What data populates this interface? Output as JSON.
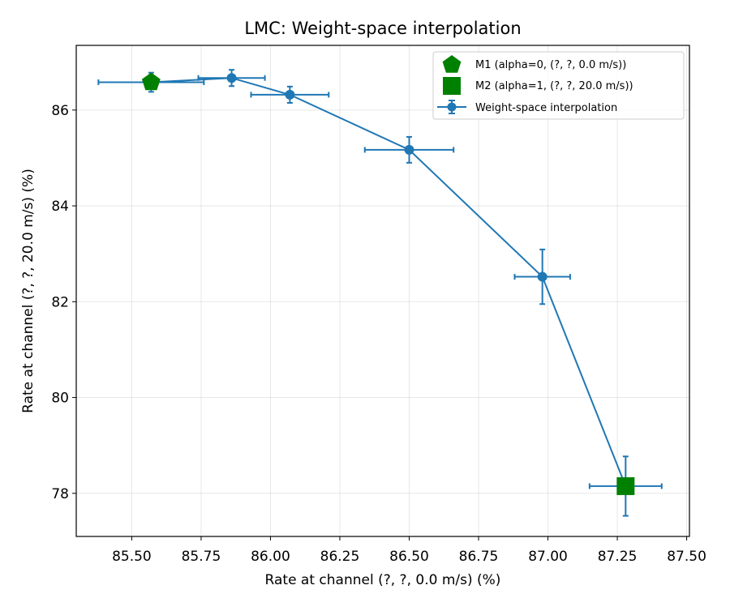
{
  "chart_data": {
    "type": "line",
    "title": "LMC: Weight-space interpolation",
    "xlabel": "Rate at channel (?, ?, 0.0 m/s) (%)",
    "ylabel": "Rate at channel (?, ?, 20.0 m/s) (%)",
    "xlim": [
      85.3,
      87.51
    ],
    "ylim": [
      77.1,
      87.35
    ],
    "x_ticks": [
      85.5,
      85.75,
      86.0,
      86.25,
      86.5,
      86.75,
      87.0,
      87.25,
      87.5
    ],
    "x_tick_labels": [
      "85.50",
      "85.75",
      "86.00",
      "86.25",
      "86.50",
      "86.75",
      "87.00",
      "87.25",
      "87.50"
    ],
    "y_ticks": [
      78,
      80,
      82,
      84,
      86
    ],
    "y_tick_labels": [
      "78",
      "80",
      "82",
      "84",
      "86"
    ],
    "grid": true,
    "legend_position": "top-right",
    "series": [
      {
        "name": "Weight-space interpolation",
        "color": "#1f77b4",
        "x": [
          85.57,
          85.86,
          86.07,
          86.5,
          86.98,
          87.28
        ],
        "y": [
          86.58,
          86.67,
          86.32,
          85.17,
          82.52,
          78.15
        ],
        "x_err": [
          0.19,
          0.12,
          0.14,
          0.16,
          0.1,
          0.13
        ],
        "y_err": [
          0.2,
          0.17,
          0.17,
          0.27,
          0.57,
          0.62
        ]
      }
    ],
    "markers": [
      {
        "name": "M1 (alpha=0, (?, ?, 0.0 m/s))",
        "shape": "pentagon",
        "color": "#008000",
        "x": 85.57,
        "y": 86.58
      },
      {
        "name": "M2 (alpha=1, (?, ?, 20.0 m/s))",
        "shape": "square",
        "color": "#008000",
        "x": 87.28,
        "y": 78.15
      }
    ]
  }
}
